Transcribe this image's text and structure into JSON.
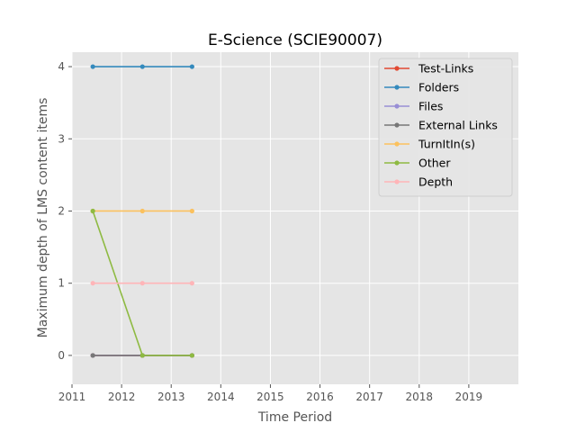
{
  "chart_data": {
    "type": "line",
    "title": "E-Science (SCIE90007)",
    "xlabel": "Time Period",
    "ylabel": "Maximum depth of LMS content items",
    "xlim": [
      2011,
      2020
    ],
    "ylim": [
      -0.4,
      4.2
    ],
    "x_ticks": [
      "2011",
      "2012",
      "2013",
      "2014",
      "2015",
      "2016",
      "2017",
      "2018",
      "2019"
    ],
    "y_ticks": [
      "0",
      "1",
      "2",
      "3",
      "4"
    ],
    "grid": true,
    "legend_position": "top-right",
    "x": [
      2011.42,
      2012.42,
      2013.42
    ],
    "series": [
      {
        "name": "Test-Links",
        "color": "#e24a33",
        "values": [
          0,
          0,
          0
        ]
      },
      {
        "name": "Folders",
        "color": "#348abd",
        "values": [
          4,
          4,
          4
        ]
      },
      {
        "name": "Files",
        "color": "#988ed5",
        "values": [
          0,
          0,
          0
        ]
      },
      {
        "name": "External Links",
        "color": "#777777",
        "values": [
          0,
          0,
          0
        ]
      },
      {
        "name": "TurnItIn(s)",
        "color": "#fbc15e",
        "values": [
          2,
          2,
          2
        ]
      },
      {
        "name": "Other",
        "color": "#8eba42",
        "values": [
          2,
          0,
          0
        ]
      },
      {
        "name": "Depth",
        "color": "#ffb5b8",
        "values": [
          1,
          1,
          1
        ]
      }
    ]
  }
}
